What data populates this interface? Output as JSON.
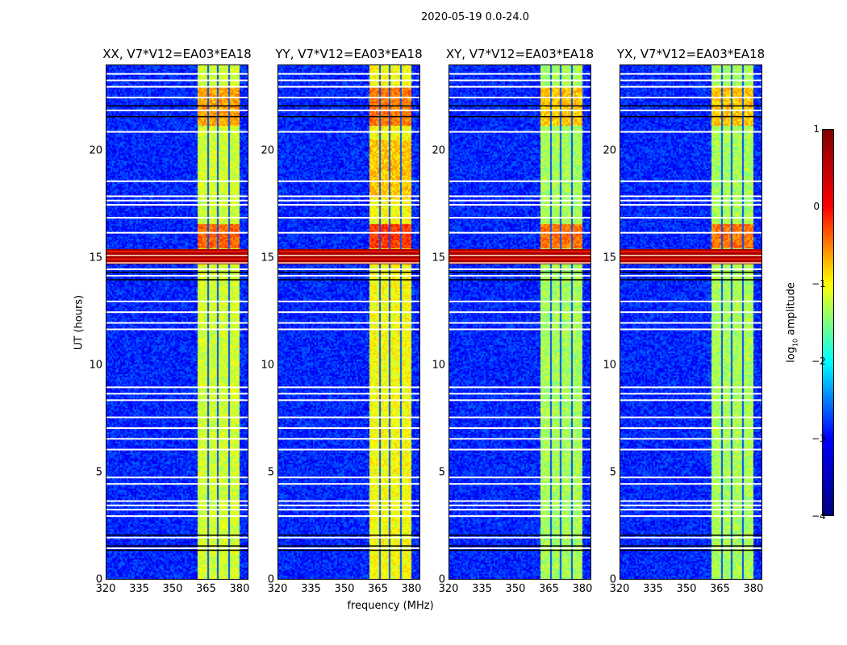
{
  "chart_data": {
    "type": "heatmap",
    "title": "2020-05-19 0.0-24.0",
    "xlabel": "frequency (MHz)",
    "ylabel": "UT (hours)",
    "xlim": [
      320,
      384
    ],
    "ylim": [
      0,
      24
    ],
    "xticks": [
      "320",
      "335",
      "350",
      "365",
      "380"
    ],
    "yticks": [
      "0",
      "5",
      "10",
      "15",
      "20"
    ],
    "colorbar": {
      "label_main": "log",
      "label_sub": "10",
      "label_rest": " amplitude",
      "range": [
        -4,
        1
      ],
      "ticks": [
        "1",
        "0",
        "−1",
        "−2",
        "−3",
        "−4"
      ],
      "colormap": "jet"
    },
    "background_log_amp": -3.2,
    "rfi_band": {
      "freq": [
        360.5,
        380
      ],
      "dark_channels": [
        365.5,
        370,
        375
      ]
    },
    "strong_rows": [
      {
        "t": [
          14.7,
          15.4
        ],
        "log_amp": 0.8
      }
    ],
    "flagged_times": [
      23.6,
      23.3,
      23.0,
      22.5,
      21.9,
      20.9,
      18.6,
      17.9,
      17.7,
      17.5,
      16.9,
      16.2,
      14.5,
      14.2,
      13.0,
      12.5,
      12.0,
      11.7,
      9.0,
      8.7,
      8.4,
      7.6,
      7.1,
      6.6,
      6.1,
      4.8,
      4.5,
      3.7,
      3.5,
      3.3,
      3.0,
      2.0,
      1.5
    ],
    "dark_times": [
      22.1,
      21.6,
      14.0,
      14.35,
      2.1,
      1.4,
      1.6
    ],
    "panels": [
      {
        "title": "XX, V7*V12=EA03*EA18",
        "band_log_amp": -1.1,
        "hot_periods": [
          [
            15.5,
            16.6,
            -0.1
          ],
          [
            21.2,
            23.0,
            -0.4
          ]
        ]
      },
      {
        "title": "YY, V7*V12=EA03*EA18",
        "band_log_amp": -0.9,
        "hot_periods": [
          [
            15.5,
            16.6,
            0.1
          ],
          [
            21.2,
            23.0,
            -0.2
          ],
          [
            17.8,
            20.5,
            -0.6
          ]
        ]
      },
      {
        "title": "XY, V7*V12=EA03*EA18",
        "band_log_amp": -1.3,
        "hot_periods": [
          [
            15.5,
            16.6,
            -0.2
          ],
          [
            21.2,
            23.0,
            -0.6
          ]
        ]
      },
      {
        "title": "YX, V7*V12=EA03*EA18",
        "band_log_amp": -1.3,
        "hot_periods": [
          [
            15.5,
            16.6,
            -0.2
          ],
          [
            21.2,
            23.0,
            -0.6
          ]
        ]
      }
    ]
  }
}
